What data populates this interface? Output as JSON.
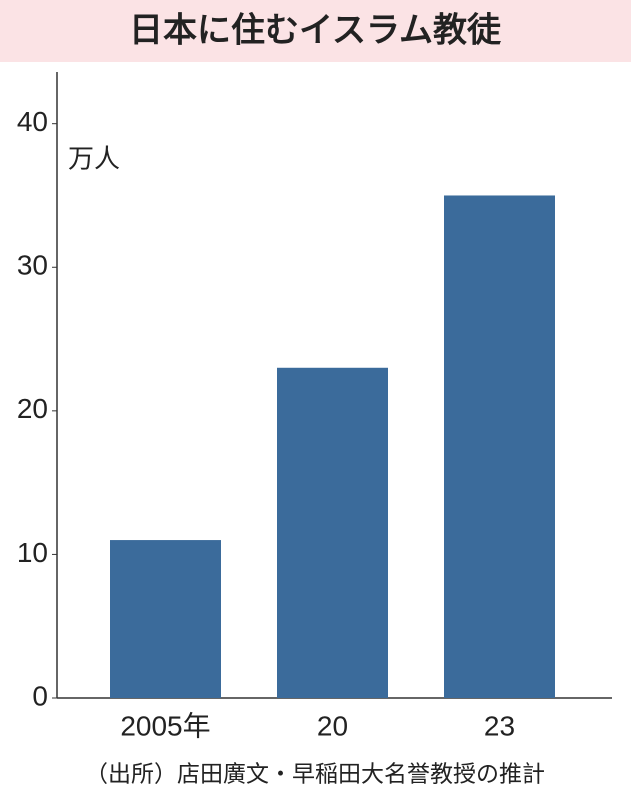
{
  "chart_data": {
    "type": "bar",
    "title": "日本に住むイスラム教徒",
    "unit": "万人",
    "categories": [
      "2005年",
      "20",
      "23"
    ],
    "values": [
      11,
      23,
      35
    ],
    "color": "#3b6b9b",
    "ylim": [
      0,
      43.6
    ],
    "yticks": [
      0,
      10,
      20,
      30,
      40
    ],
    "grid": false,
    "source": "（出所）店田廣文・早稲田大名誉教授の推計"
  }
}
